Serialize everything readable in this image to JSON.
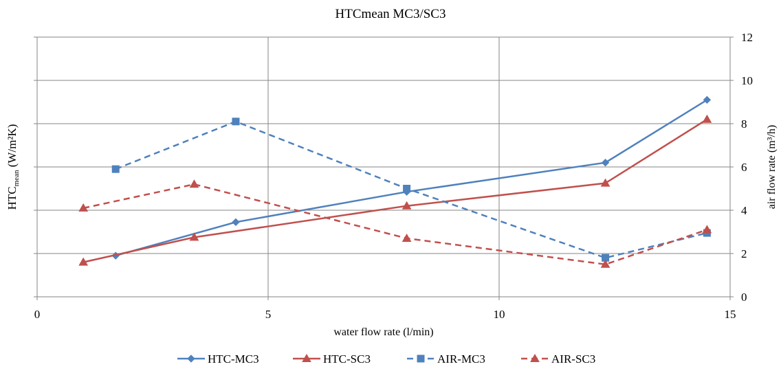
{
  "chart_data": {
    "type": "line",
    "title": "HTCmean MC3/SC3",
    "xlabel": "water flow rate (l/min)",
    "ylabel_main": "HTC",
    "ylabel_sub": "mean",
    "ylabel_unit": " (W/m²K)",
    "y2label": "air flow rate (m³/h)",
    "xlim": [
      0,
      15
    ],
    "ylim": [
      0,
      12
    ],
    "y2lim": [
      0,
      12
    ],
    "x_ticks": [
      0,
      5,
      10,
      15
    ],
    "y_ticks": [
      0,
      2,
      4,
      6,
      8,
      10,
      12
    ],
    "y2_ticks": [
      0,
      2,
      4,
      6,
      8,
      10,
      12
    ],
    "y_tick_labels": [
      "",
      "",
      "",
      "",
      "",
      "",
      ""
    ],
    "grid": true,
    "legend_position": "bottom",
    "series": [
      {
        "name": "HTC-MC3",
        "axis": "left",
        "color": "#4F81BD",
        "dash": "solid",
        "marker": "diamond",
        "x": [
          1.7,
          4.3,
          8.0,
          12.3,
          14.5
        ],
        "y": [
          1.9,
          3.45,
          4.85,
          6.2,
          9.1
        ]
      },
      {
        "name": "HTC-SC3",
        "axis": "left",
        "color": "#C0504D",
        "dash": "solid",
        "marker": "triangle",
        "x": [
          1.0,
          3.4,
          8.0,
          12.3,
          14.5
        ],
        "y": [
          1.6,
          2.75,
          4.2,
          5.25,
          8.2
        ]
      },
      {
        "name": "AIR-MC3",
        "axis": "right",
        "color": "#4F81BD",
        "dash": "dashed",
        "marker": "square",
        "x": [
          1.7,
          4.3,
          8.0,
          12.3,
          14.5
        ],
        "y": [
          5.9,
          8.1,
          5.0,
          1.8,
          2.95
        ]
      },
      {
        "name": "AIR-SC3",
        "axis": "right",
        "color": "#C0504D",
        "dash": "dashed",
        "marker": "triangle",
        "x": [
          1.0,
          3.4,
          8.0,
          12.3,
          14.5
        ],
        "y": [
          4.1,
          5.2,
          2.7,
          1.5,
          3.1
        ]
      }
    ]
  }
}
